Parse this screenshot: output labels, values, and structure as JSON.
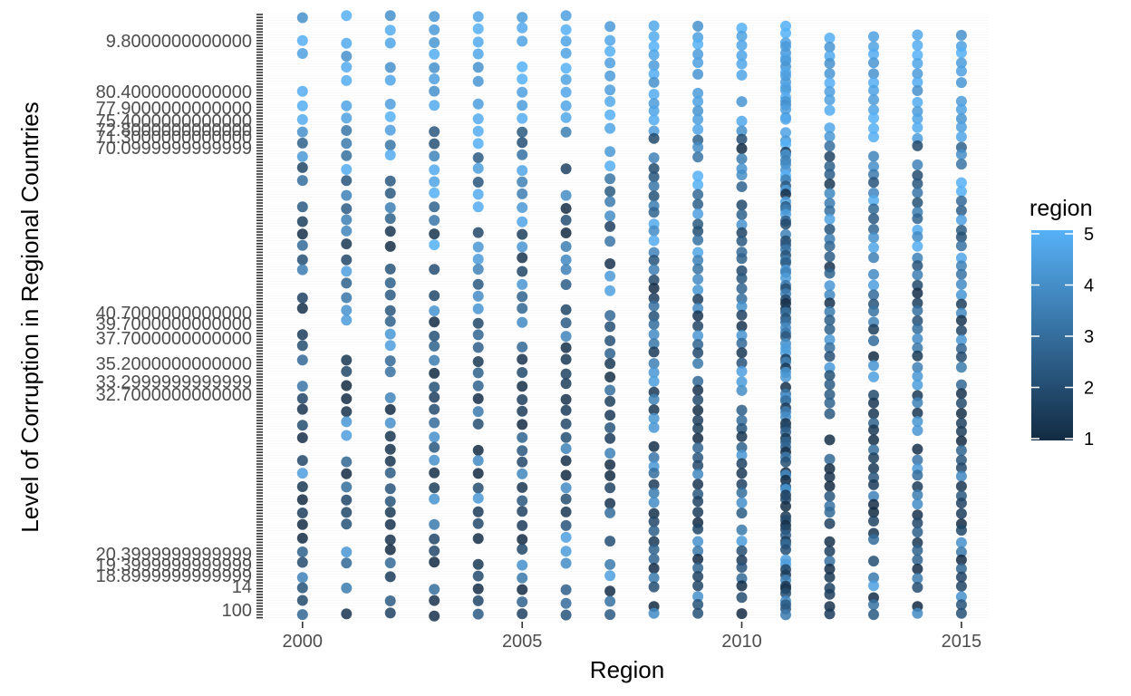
{
  "chart_data": {
    "type": "scatter",
    "title": "",
    "xlabel": "Region",
    "ylabel": "Level of Corruption in Regional Countries",
    "x_ticks": [
      2000,
      2005,
      2010,
      2015
    ],
    "xlim": [
      1999.2,
      2015.6
    ],
    "y_axis_note": "categorical axis with many overlapping labels",
    "y_visible_labels": [
      "9.8000000000000",
      "80.4000000000000",
      "77.9000000000000",
      "75.4000000000000",
      "72.8000000000000",
      "71.3000000000000",
      "70.0999999999999",
      "40.7000000000000",
      "39.7000000000000",
      "37.7000000000000",
      "35.2000000000000",
      "33.2999999999999",
      "32.7000000000000",
      "20.3999999999999",
      "19.3999999999999",
      "18.8999999999999",
      "14",
      "100"
    ],
    "years": [
      2000,
      2001,
      2002,
      2003,
      2004,
      2005,
      2006,
      2007,
      2008,
      2009,
      2010,
      2011,
      2012,
      2013,
      2014,
      2015
    ],
    "color_scale": {
      "name": "region",
      "min": 1,
      "max": 5,
      "ticks": [
        1,
        2,
        3,
        4,
        5
      ],
      "low_color": "#132B43",
      "high_color": "#56B1F7"
    }
  }
}
